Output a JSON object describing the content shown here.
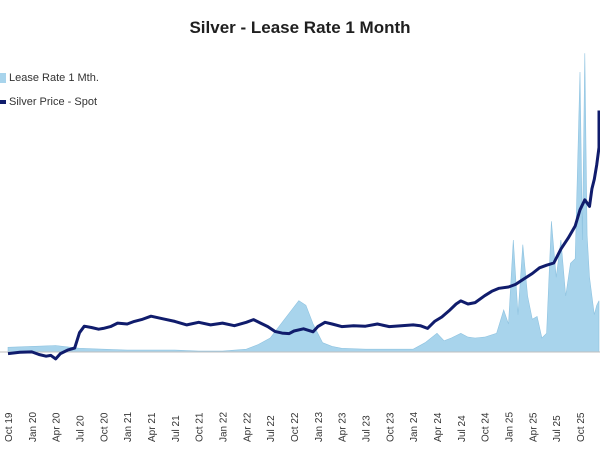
{
  "chart_data": {
    "type": "area",
    "title": "Silver - Lease Rate 1 Month",
    "legend": [
      {
        "name": "Lease Rate 1 Mth.",
        "color": "#a8d4ec",
        "kind": "area"
      },
      {
        "name": "Silver Price - Spot",
        "color": "#101c6c",
        "kind": "line"
      }
    ],
    "legend_position": "top-left",
    "grid": false,
    "x_ticks": [
      "Oct 19",
      "Jan 20",
      "Apr 20",
      "Jul 20",
      "Oct 20",
      "Jan 21",
      "Apr 21",
      "Jul 21",
      "Oct 21",
      "Jan 22",
      "Apr 22",
      "Jul 22",
      "Oct 22",
      "Jan 23",
      "Apr 23",
      "Jul 23",
      "Oct 23",
      "Jan 24",
      "Apr 24",
      "Jul 24",
      "Oct 24",
      "Jan 25",
      "Apr 25",
      "Jul 25",
      "Oct 25"
    ],
    "series": [
      {
        "name": "Silver Price - Spot",
        "kind": "line",
        "color": "#101c6c",
        "x": [
          0,
          0.5,
          1,
          1.3,
          1.6,
          1.8,
          2.0,
          2.2,
          2.5,
          2.8,
          3.0,
          3.2,
          3.5,
          3.8,
          4.0,
          4.3,
          4.6,
          5.0,
          5.3,
          5.6,
          6.0,
          6.5,
          7.0,
          7.5,
          8.0,
          8.5,
          9.0,
          9.5,
          10.0,
          10.3,
          10.6,
          10.9,
          11.2,
          11.5,
          11.8,
          12.0,
          12.4,
          12.8,
          13.0,
          13.3,
          13.6,
          14.0,
          14.5,
          15.0,
          15.5,
          16.0,
          16.5,
          17.0,
          17.3,
          17.6,
          17.9,
          18.2,
          18.5,
          18.8,
          19.0,
          19.3,
          19.6,
          20.0,
          20.3,
          20.6,
          21.0,
          21.3,
          21.6,
          22.0,
          22.3,
          22.6,
          22.9,
          23.2,
          23.5,
          23.8,
          24.0,
          24.2,
          24.4,
          24.5,
          24.6,
          24.7,
          24.8,
          24.9,
          25.0,
          25.2
        ],
        "y": [
          17.2,
          17.5,
          17.6,
          17.0,
          16.6,
          16.8,
          16.0,
          17.2,
          18.0,
          18.5,
          22.0,
          23.5,
          23.2,
          22.8,
          23.0,
          23.4,
          24.2,
          24.0,
          24.6,
          25.0,
          25.8,
          25.2,
          24.6,
          23.8,
          24.4,
          23.8,
          24.2,
          23.6,
          24.4,
          25.0,
          24.2,
          23.4,
          22.3,
          21.9,
          21.8,
          22.4,
          22.9,
          22.2,
          23.4,
          24.4,
          24.0,
          23.4,
          23.6,
          23.5,
          24.0,
          23.4,
          23.6,
          23.8,
          23.6,
          23.0,
          24.6,
          25.6,
          27.0,
          28.6,
          29.3,
          28.6,
          28.9,
          30.5,
          31.5,
          32.2,
          32.5,
          33.1,
          34.2,
          35.6,
          36.9,
          37.5,
          38.0,
          41.2,
          43.7,
          46.5,
          50.2,
          52.5,
          51.0,
          55.0,
          57.2,
          60.5,
          64.5,
          67.8,
          70.5,
          73.0
        ]
      },
      {
        "name": "Lease Rate 1 Mth.",
        "kind": "area",
        "color": "#a8d4ec",
        "x": [
          0,
          1,
          2,
          3,
          4,
          5,
          6,
          7,
          8,
          9,
          10,
          10.5,
          11,
          11.3,
          11.6,
          11.9,
          12.2,
          12.5,
          12.8,
          13.2,
          13.6,
          14,
          15,
          16,
          17,
          17.5,
          18,
          18.3,
          18.6,
          19,
          19.3,
          19.6,
          20,
          20.5,
          20.8,
          21.0,
          21.2,
          21.4,
          21.6,
          21.8,
          22.0,
          22.2,
          22.4,
          22.6,
          22.8,
          23.0,
          23.2,
          23.4,
          23.6,
          23.8,
          24.0,
          24.1,
          24.2,
          24.3,
          24.4,
          24.5,
          24.6,
          24.7,
          24.8,
          24.9,
          25.0,
          25.2
        ],
        "y": [
          0.5,
          0.6,
          0.7,
          0.4,
          0.3,
          0.2,
          0.2,
          0.2,
          0.1,
          0.1,
          0.3,
          0.8,
          1.5,
          2.5,
          3.5,
          4.5,
          5.5,
          5.0,
          3.0,
          1.0,
          0.6,
          0.4,
          0.3,
          0.3,
          0.3,
          1.0,
          2.0,
          1.2,
          1.5,
          2.0,
          1.6,
          1.5,
          1.6,
          2.0,
          4.5,
          3.0,
          12.0,
          4.0,
          11.5,
          6.0,
          3.5,
          3.8,
          1.5,
          2.0,
          14.0,
          8.0,
          12.0,
          6.0,
          9.5,
          10.0,
          30.0,
          12.0,
          32.0,
          12.5,
          8.0,
          6.0,
          4.0,
          5.0,
          5.5,
          5.0,
          5.5,
          5.5
        ]
      }
    ],
    "price_axis": {
      "min": 10,
      "max": 80
    },
    "lease_axis": {
      "min": -3,
      "max": 38
    }
  }
}
